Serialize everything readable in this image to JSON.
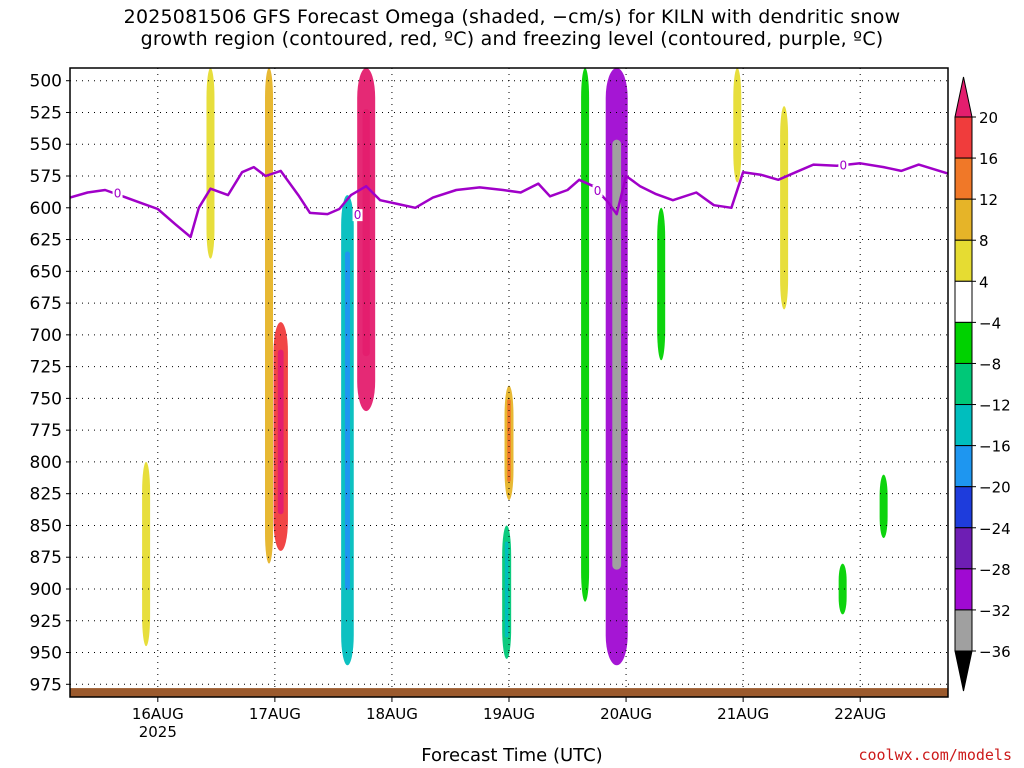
{
  "title_line1": "2025081506 GFS Forecast Omega (shaded, −cm/s) for KILN with dendritic snow",
  "title_line2": "growth region (contoured, red, ºC) and freezing level (contoured, purple, ºC)",
  "credit": "coolwx.com/models",
  "chart_data": {
    "type": "heatmap",
    "title": "2025081506 GFS Forecast Omega (shaded, −cm/s) for KILN with dendritic snow growth region (contoured, red, ºC) and freezing level (contoured, purple, ºC)",
    "xlabel": "Forecast Time (UTC)",
    "ylabel": "",
    "x_ticks": [
      "16AUG",
      "17AUG",
      "18AUG",
      "19AUG",
      "20AUG",
      "21AUG",
      "22AUG"
    ],
    "x_tick_sublabel": "2025",
    "xlim_days": [
      15.25,
      22.75
    ],
    "y_ticks": [
      500,
      525,
      550,
      575,
      600,
      625,
      650,
      675,
      700,
      725,
      750,
      775,
      800,
      825,
      850,
      875,
      900,
      925,
      950,
      975
    ],
    "ylim": [
      490,
      985
    ],
    "y_units": "hPa",
    "grid": true,
    "colorbar": {
      "labels": [
        20,
        16,
        12,
        8,
        4,
        -4,
        -8,
        -12,
        -16,
        -20,
        -24,
        -28,
        -32,
        -36
      ],
      "colors": [
        "#e41e6e",
        "#f03c3c",
        "#f07828",
        "#e6b428",
        "#e6dc32",
        "#ffffff",
        "#00d200",
        "#00c878",
        "#00bebe",
        "#1e96f0",
        "#1e3cdc",
        "#6e1eb4",
        "#a00ad2",
        "#a0a0a0",
        "#000000"
      ],
      "ends": {
        "top": "#e41e6e",
        "bottom": "#000000"
      }
    },
    "freezing_level": {
      "color": "#a000c8",
      "label": "0",
      "points": [
        [
          15.25,
          592
        ],
        [
          15.4,
          588
        ],
        [
          15.55,
          586
        ],
        [
          15.7,
          591
        ],
        [
          15.85,
          596
        ],
        [
          16.0,
          601
        ],
        [
          16.15,
          613
        ],
        [
          16.28,
          623
        ],
        [
          16.35,
          600
        ],
        [
          16.45,
          585
        ],
        [
          16.6,
          590
        ],
        [
          16.72,
          572
        ],
        [
          16.82,
          568
        ],
        [
          16.92,
          575
        ],
        [
          17.05,
          571
        ],
        [
          17.2,
          590
        ],
        [
          17.3,
          604
        ],
        [
          17.45,
          605
        ],
        [
          17.55,
          601
        ],
        [
          17.65,
          590
        ],
        [
          17.78,
          583
        ],
        [
          17.9,
          594
        ],
        [
          18.05,
          597
        ],
        [
          18.2,
          600
        ],
        [
          18.35,
          592
        ],
        [
          18.55,
          586
        ],
        [
          18.75,
          584
        ],
        [
          18.95,
          586
        ],
        [
          19.1,
          588
        ],
        [
          19.25,
          581
        ],
        [
          19.35,
          591
        ],
        [
          19.5,
          586
        ],
        [
          19.6,
          578
        ],
        [
          19.72,
          583
        ],
        [
          19.85,
          596
        ],
        [
          19.92,
          605
        ],
        [
          20.0,
          575
        ],
        [
          20.12,
          583
        ],
        [
          20.25,
          589
        ],
        [
          20.4,
          594
        ],
        [
          20.6,
          588
        ],
        [
          20.75,
          598
        ],
        [
          20.9,
          600
        ],
        [
          21.0,
          572
        ],
        [
          21.15,
          574
        ],
        [
          21.3,
          578
        ],
        [
          21.45,
          572
        ],
        [
          21.6,
          566
        ],
        [
          21.8,
          567
        ],
        [
          22.0,
          565
        ],
        [
          22.2,
          568
        ],
        [
          22.35,
          571
        ],
        [
          22.5,
          566
        ],
        [
          22.75,
          573
        ]
      ]
    },
    "surface_pressure_band": {
      "color": "#9b5a2d",
      "approx_hpa": [
        978,
        990
      ]
    },
    "omega_features": [
      {
        "day": 15.9,
        "p_range": [
          800,
          945
        ],
        "value": 6
      },
      {
        "day": 16.45,
        "p_range": [
          490,
          640
        ],
        "value": 6
      },
      {
        "day": 16.95,
        "p_range": [
          490,
          880
        ],
        "value": 8
      },
      {
        "day": 17.05,
        "p_range": [
          690,
          870
        ],
        "value": 16
      },
      {
        "day": 17.62,
        "p_range": [
          590,
          960
        ],
        "value": -14
      },
      {
        "day": 17.78,
        "p_range": [
          490,
          760
        ],
        "value": 20
      },
      {
        "day": 18.98,
        "p_range": [
          850,
          955
        ],
        "value": -10
      },
      {
        "day": 19.0,
        "p_range": [
          740,
          830
        ],
        "value": 10
      },
      {
        "day": 19.65,
        "p_range": [
          490,
          910
        ],
        "value": -8
      },
      {
        "day": 19.92,
        "p_range": [
          490,
          960
        ],
        "value": -30
      },
      {
        "day": 20.3,
        "p_range": [
          600,
          720
        ],
        "value": -6
      },
      {
        "day": 20.95,
        "p_range": [
          490,
          580
        ],
        "value": 5
      },
      {
        "day": 21.35,
        "p_range": [
          520,
          680
        ],
        "value": 5
      },
      {
        "day": 21.85,
        "p_range": [
          880,
          920
        ],
        "value": -6
      },
      {
        "day": 22.2,
        "p_range": [
          810,
          860
        ],
        "value": -6
      }
    ]
  }
}
